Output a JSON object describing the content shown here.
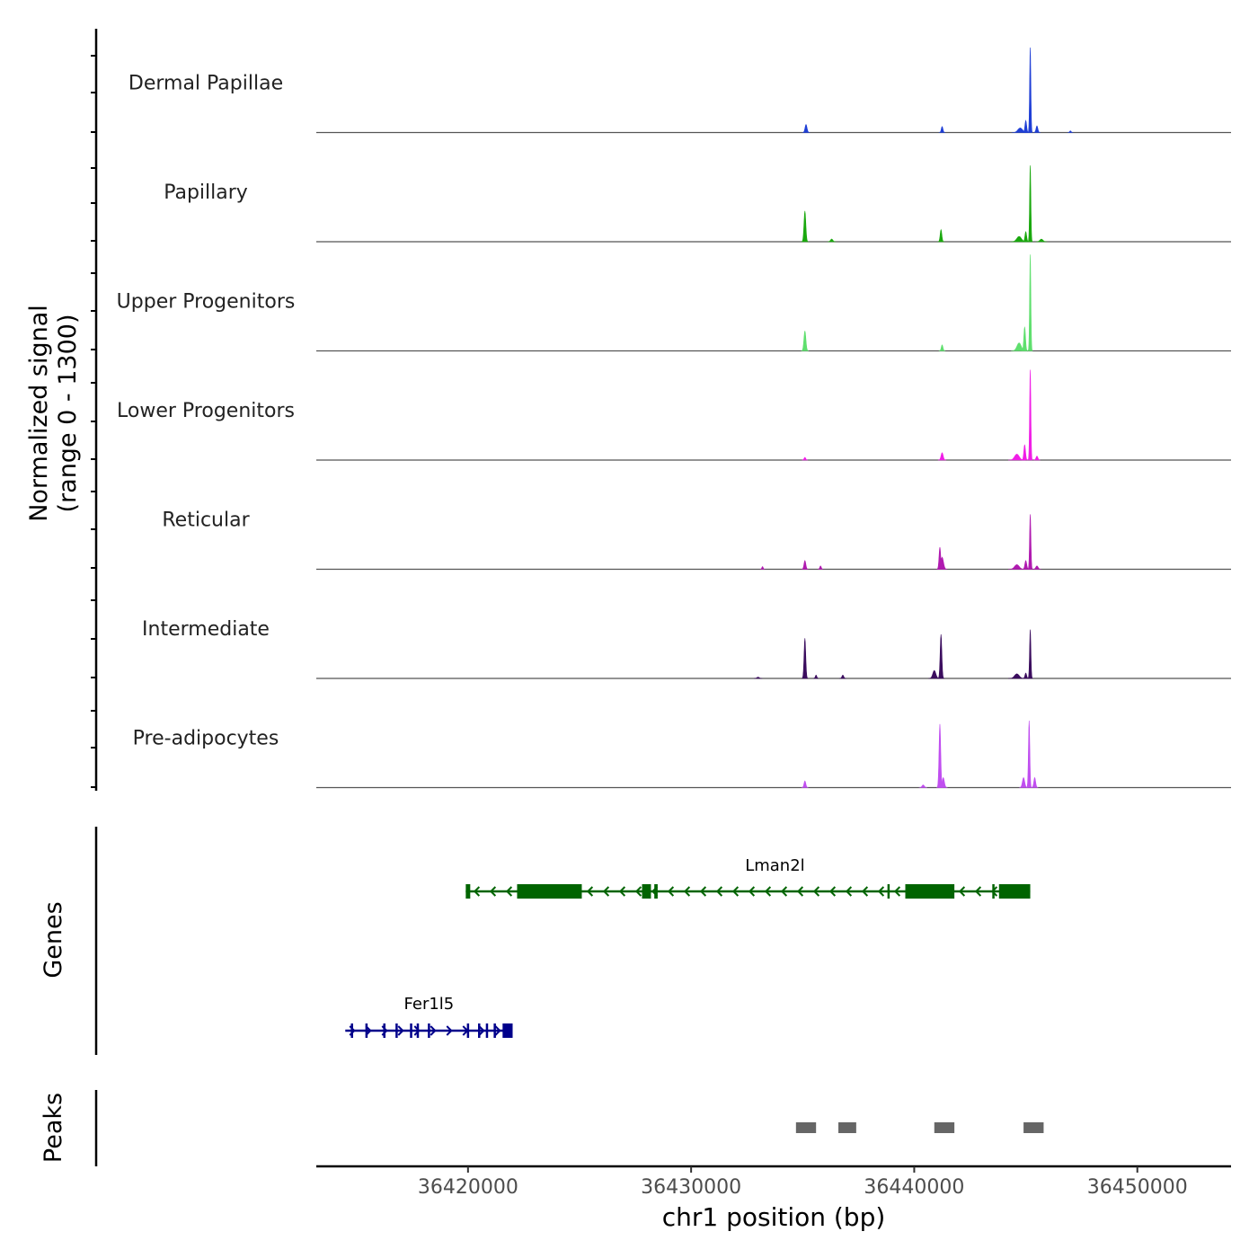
{
  "chart_data": {
    "type": "area",
    "chromosome": "chr1",
    "xlabel": "chr1 position (bp)",
    "xlim": [
      36413200,
      36454200
    ],
    "xticks": [
      36420000,
      36430000,
      36440000,
      36450000
    ],
    "xtick_labels": [
      "36420000",
      "36430000",
      "36440000",
      "36450000"
    ],
    "ylabel_line1": "Normalized signal",
    "ylabel_line2": "(range 0 - 1300)",
    "ylim": [
      0,
      1300
    ],
    "tracks": [
      {
        "name": "Dermal Papillae",
        "color": "#1f3fd6",
        "peaks": [
          {
            "pos": 36435150,
            "height": 120,
            "width": 130
          },
          {
            "pos": 36441250,
            "height": 90,
            "width": 110
          },
          {
            "pos": 36444750,
            "height": 70,
            "width": 300
          },
          {
            "pos": 36445000,
            "height": 180,
            "width": 110
          },
          {
            "pos": 36445200,
            "height": 1270,
            "width": 80
          },
          {
            "pos": 36445500,
            "height": 100,
            "width": 120
          },
          {
            "pos": 36447000,
            "height": 25,
            "width": 100
          }
        ]
      },
      {
        "name": "Papillary",
        "color": "#1aa80e",
        "peaks": [
          {
            "pos": 36435100,
            "height": 460,
            "width": 120
          },
          {
            "pos": 36436300,
            "height": 40,
            "width": 150
          },
          {
            "pos": 36441200,
            "height": 180,
            "width": 110
          },
          {
            "pos": 36444700,
            "height": 80,
            "width": 300
          },
          {
            "pos": 36445000,
            "height": 150,
            "width": 110
          },
          {
            "pos": 36445200,
            "height": 1140,
            "width": 80
          },
          {
            "pos": 36445700,
            "height": 40,
            "width": 200
          }
        ]
      },
      {
        "name": "Upper Progenitors",
        "color": "#5fdf6e",
        "peaks": [
          {
            "pos": 36435100,
            "height": 300,
            "width": 130
          },
          {
            "pos": 36441250,
            "height": 90,
            "width": 110
          },
          {
            "pos": 36444700,
            "height": 120,
            "width": 280
          },
          {
            "pos": 36444950,
            "height": 360,
            "width": 110
          },
          {
            "pos": 36445200,
            "height": 1440,
            "width": 80
          }
        ]
      },
      {
        "name": "Lower Progenitors",
        "color": "#f01ee6",
        "peaks": [
          {
            "pos": 36435100,
            "height": 40,
            "width": 110
          },
          {
            "pos": 36441250,
            "height": 110,
            "width": 140
          },
          {
            "pos": 36444600,
            "height": 90,
            "width": 300
          },
          {
            "pos": 36444950,
            "height": 230,
            "width": 110
          },
          {
            "pos": 36445200,
            "height": 1350,
            "width": 80
          },
          {
            "pos": 36445500,
            "height": 60,
            "width": 120
          }
        ]
      },
      {
        "name": "Reticular",
        "color": "#b01ab0",
        "peaks": [
          {
            "pos": 36433200,
            "height": 40,
            "width": 90
          },
          {
            "pos": 36435100,
            "height": 130,
            "width": 120
          },
          {
            "pos": 36435800,
            "height": 50,
            "width": 100
          },
          {
            "pos": 36441150,
            "height": 330,
            "width": 110
          },
          {
            "pos": 36441250,
            "height": 180,
            "width": 180
          },
          {
            "pos": 36444600,
            "height": 70,
            "width": 300
          },
          {
            "pos": 36445000,
            "height": 130,
            "width": 120
          },
          {
            "pos": 36445200,
            "height": 820,
            "width": 85
          },
          {
            "pos": 36445500,
            "height": 50,
            "width": 150
          }
        ]
      },
      {
        "name": "Intermediate",
        "color": "#3b0d5e",
        "peaks": [
          {
            "pos": 36433000,
            "height": 20,
            "width": 150
          },
          {
            "pos": 36435100,
            "height": 600,
            "width": 110
          },
          {
            "pos": 36435600,
            "height": 50,
            "width": 100
          },
          {
            "pos": 36436800,
            "height": 50,
            "width": 120
          },
          {
            "pos": 36440900,
            "height": 120,
            "width": 200
          },
          {
            "pos": 36441200,
            "height": 660,
            "width": 110
          },
          {
            "pos": 36444600,
            "height": 70,
            "width": 300
          },
          {
            "pos": 36445000,
            "height": 80,
            "width": 110
          },
          {
            "pos": 36445200,
            "height": 730,
            "width": 85
          }
        ]
      },
      {
        "name": "Pre-adipocytes",
        "color": "#c04ef0",
        "peaks": [
          {
            "pos": 36435100,
            "height": 100,
            "width": 120
          },
          {
            "pos": 36440400,
            "height": 40,
            "width": 150
          },
          {
            "pos": 36441150,
            "height": 950,
            "width": 110
          },
          {
            "pos": 36441300,
            "height": 150,
            "width": 150
          },
          {
            "pos": 36444900,
            "height": 150,
            "width": 150
          },
          {
            "pos": 36445150,
            "height": 1000,
            "width": 90
          },
          {
            "pos": 36445400,
            "height": 150,
            "width": 120
          }
        ]
      }
    ],
    "genes_label": "Genes",
    "genes": [
      {
        "name": "Lman2l",
        "strand": "-",
        "color": "#006400",
        "start": 36419900,
        "end": 36445200,
        "exons": [
          [
            36419900,
            36420100
          ],
          [
            36422200,
            36425100
          ],
          [
            36427800,
            36428200
          ],
          [
            36428350,
            36428500
          ],
          [
            36438800,
            36438900
          ],
          [
            36439600,
            36441800
          ],
          [
            36443500,
            36443600
          ],
          [
            36443800,
            36445200
          ]
        ]
      },
      {
        "name": "Fer1l5",
        "strand": "+",
        "color": "#00008b",
        "start": 36414500,
        "end": 36422000,
        "exons": [
          [
            36414750,
            36414850
          ],
          [
            36415400,
            36415500
          ],
          [
            36416200,
            36416280
          ],
          [
            36416750,
            36416850
          ],
          [
            36417400,
            36417500
          ],
          [
            36417700,
            36417780
          ],
          [
            36418200,
            36418300
          ],
          [
            36419950,
            36420050
          ],
          [
            36420450,
            36420550
          ],
          [
            36420800,
            36420880
          ],
          [
            36421150,
            36421250
          ],
          [
            36421550,
            36422000
          ]
        ]
      }
    ],
    "peaks_label": "Peaks",
    "peak_regions": [
      [
        36434700,
        36435600
      ],
      [
        36436600,
        36437400
      ],
      [
        36440900,
        36441800
      ],
      [
        36444900,
        36445800
      ]
    ]
  }
}
